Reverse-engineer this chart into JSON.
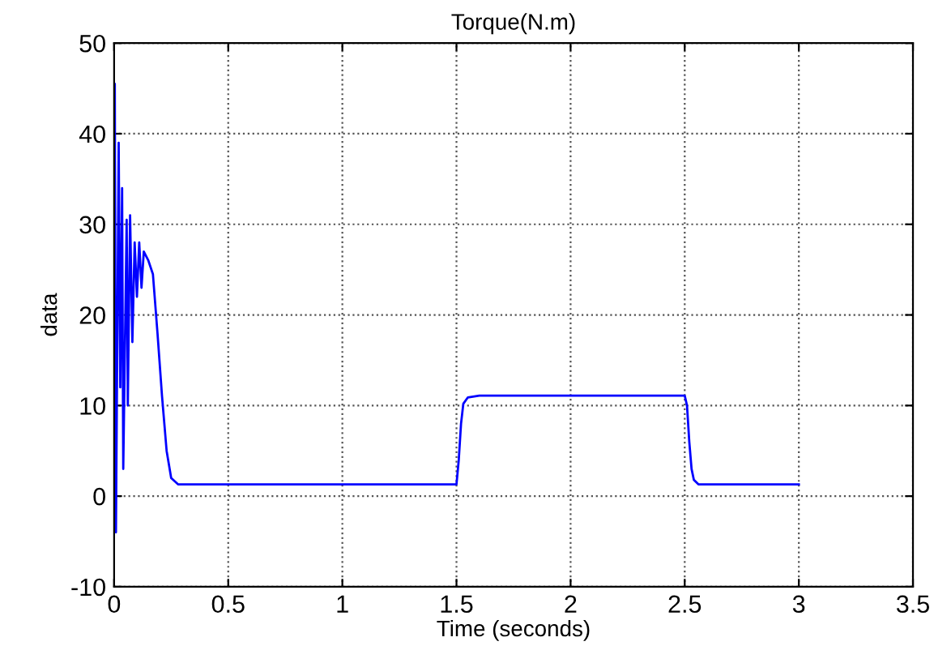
{
  "chart_data": {
    "type": "line",
    "title": "Torque(N.m)",
    "xlabel": "Time (seconds)",
    "ylabel": "data",
    "series": [
      {
        "color": "#0000ff",
        "x": [
          0,
          0.003,
          0.008,
          0.02,
          0.027,
          0.035,
          0.04,
          0.055,
          0.06,
          0.07,
          0.08,
          0.09,
          0.1,
          0.11,
          0.12,
          0.13,
          0.15,
          0.17,
          0.19,
          0.21,
          0.23,
          0.25,
          0.28,
          1.5,
          1.51,
          1.52,
          1.53,
          1.55,
          1.6,
          2.5,
          2.51,
          2.52,
          2.53,
          2.54,
          2.56,
          3
        ],
        "values": [
          0,
          45.5,
          -4,
          39,
          12,
          34,
          3,
          30.5,
          10,
          31,
          17,
          28,
          22,
          28,
          23,
          27,
          26,
          24.5,
          18,
          11,
          5,
          2,
          1.3,
          1.3,
          4,
          8,
          10.2,
          10.9,
          11.1,
          11.1,
          10,
          6,
          3,
          1.8,
          1.3,
          1.3
        ]
      }
    ],
    "xlim": [
      0,
      3.5
    ],
    "xticks": [
      0,
      0.5,
      1,
      1.5,
      2,
      2.5,
      3,
      3.5
    ],
    "ylim": [
      -10,
      50
    ],
    "yticks": [
      -10,
      0,
      10,
      20,
      30,
      40,
      50
    ],
    "grid": true,
    "line_style": "solid",
    "marker": "none"
  }
}
